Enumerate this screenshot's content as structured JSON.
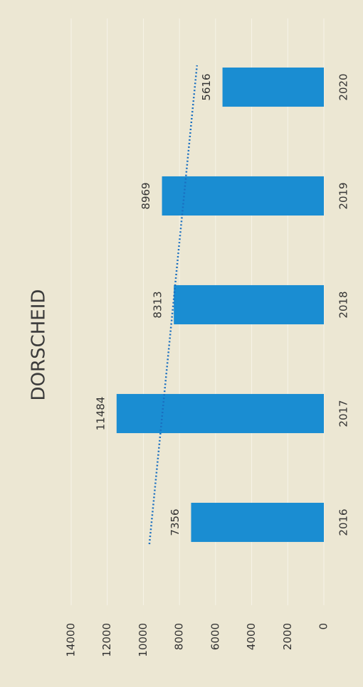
{
  "chart_data": {
    "type": "bar",
    "title": "DORSCHEID",
    "categories": [
      "2016",
      "2017",
      "2018",
      "2019",
      "2020"
    ],
    "values": [
      7356,
      11484,
      8313,
      8969,
      5616
    ],
    "color": "#1a8dd2",
    "ylim": [
      0,
      14000
    ],
    "yticks": [
      0,
      2000,
      4000,
      6000,
      8000,
      10000,
      12000,
      14000
    ],
    "grid": true,
    "trendline": {
      "type": "linear",
      "color": "#1a6fc0",
      "style": "dotted"
    },
    "rotation": -90
  }
}
